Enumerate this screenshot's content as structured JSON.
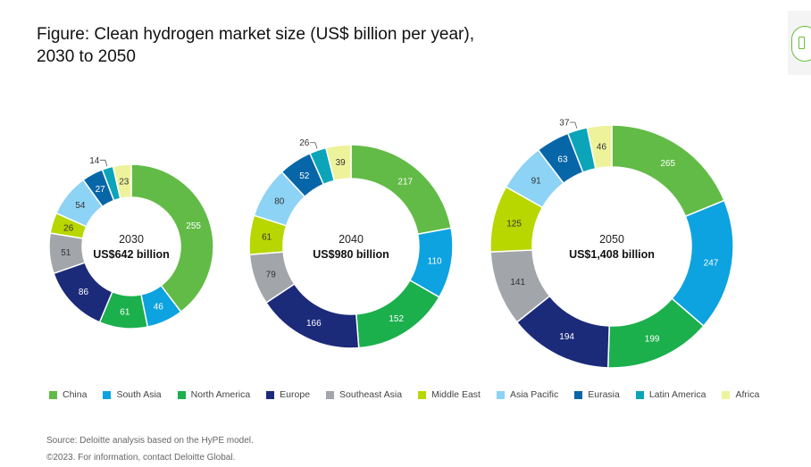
{
  "title": "Figure: Clean hydrogen market size (US$ billion per year),\n2030 to 2050",
  "source": "Source: Deloitte analysis based on the HyPE model.",
  "copyright": "©2023. For information, contact Deloitte Global.",
  "colors": {
    "China": "#62bb46",
    "South Asia": "#0da2e0",
    "North America": "#1bb04c",
    "Europe": "#1c2a7a",
    "Southeast Asia": "#a2a6ab",
    "Middle East": "#b8d600",
    "Asia Pacific": "#8dd3f5",
    "Eurasia": "#0766a8",
    "Latin America": "#0ba4b8",
    "Africa": "#eef39b"
  },
  "chart_data": {
    "type": "donut",
    "title": "Figure: Clean hydrogen market size (US$ billion per year), 2030 to 2050",
    "regions": [
      "China",
      "South Asia",
      "North America",
      "Europe",
      "Southeast Asia",
      "Middle East",
      "Asia Pacific",
      "Eurasia",
      "Latin America",
      "Africa"
    ],
    "legend_position": "bottom",
    "charts": [
      {
        "year": "2030",
        "total_label": "US$642 billion",
        "values": [
          255,
          46,
          61,
          86,
          51,
          26,
          54,
          27,
          14,
          23
        ]
      },
      {
        "year": "2040",
        "total_label": "US$980 billion",
        "values": [
          217,
          110,
          152,
          166,
          79,
          61,
          80,
          52,
          26,
          39
        ]
      },
      {
        "year": "2050",
        "total_label": "US$1,408 billion",
        "values": [
          265,
          247,
          199,
          194,
          141,
          125,
          91,
          63,
          37,
          46
        ]
      }
    ]
  }
}
